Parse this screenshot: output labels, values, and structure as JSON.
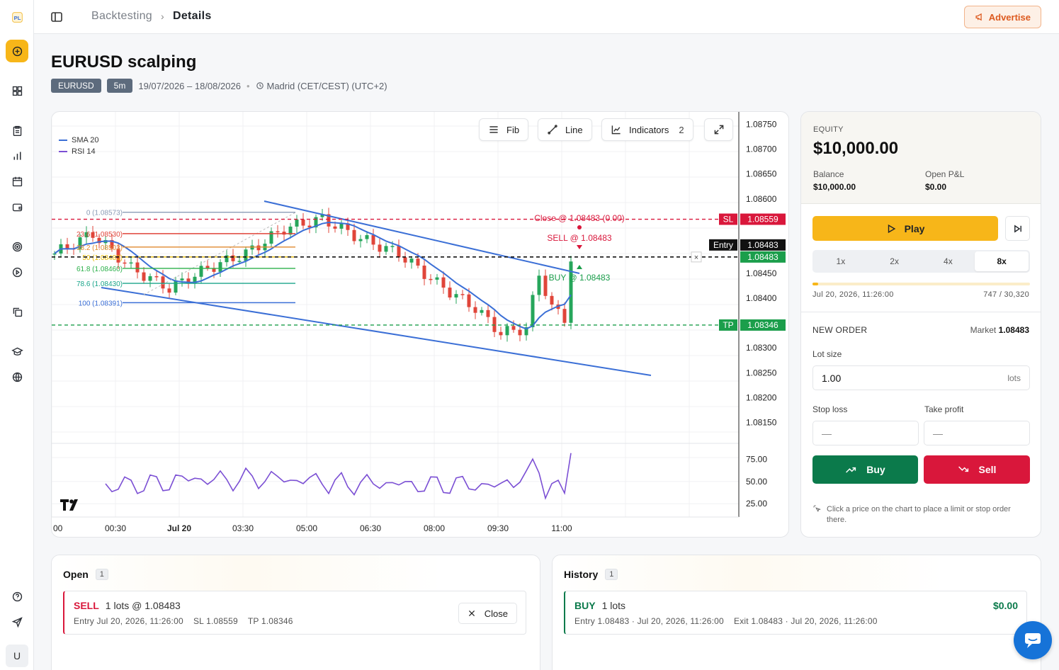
{
  "breadcrumb": {
    "parent": "Backtesting",
    "current": "Details"
  },
  "advertise_label": "Advertise",
  "sidebar": {
    "user_initial": "U"
  },
  "session": {
    "title": "EURUSD scalping",
    "symbol": "EURUSD",
    "timeframe": "5m",
    "date_range": "19/07/2026 – 18/08/2026",
    "timezone": "Madrid (CET/CEST) (UTC+2)"
  },
  "toolbar": {
    "fib_label": "Fib",
    "line_label": "Line",
    "indicators_label": "Indicators",
    "indicators_count": "2"
  },
  "legend": [
    {
      "name": "SMA 20",
      "color": "#3b6fd6"
    },
    {
      "name": "RSI 14",
      "color": "#7b4fd4"
    }
  ],
  "chart_data": {
    "type": "candlestick",
    "price_axis": [
      "1.08750",
      "1.08700",
      "1.08650",
      "1.08600",
      "1.08450",
      "1.08400",
      "1.08300",
      "1.08250",
      "1.08200",
      "1.08150"
    ],
    "price_range": [
      1.08115,
      1.08775
    ],
    "time_axis": [
      "00",
      "00:30",
      "Jul 20",
      "03:30",
      "05:00",
      "06:30",
      "08:00",
      "09:30",
      "11:00"
    ],
    "rsi_axis": [
      "75.00",
      "50.00",
      "25.00"
    ],
    "rsi_range": [
      10,
      85
    ],
    "levels": {
      "sl": {
        "label": "SL",
        "price": "1.08559",
        "value": 1.08559
      },
      "entry": {
        "label": "Entry",
        "price": "1.08483",
        "value": 1.08483
      },
      "current": {
        "price": "1.08483"
      },
      "tp": {
        "label": "TP",
        "price": "1.08346",
        "value": 1.08346
      }
    },
    "fib_levels": [
      {
        "label": "0 (1.08573)",
        "value": 1.08573,
        "color": "#8b9cb6"
      },
      {
        "label": "23.6 (1.08530)",
        "value": 1.0853,
        "color": "#e0453a"
      },
      {
        "label": "38.2 (1.08503)",
        "value": 1.08503,
        "color": "#e08a2e"
      },
      {
        "label": "50 (1.08483)",
        "value": 1.08483,
        "color": "#e6b800"
      },
      {
        "label": "61.8 (1.08460)",
        "value": 1.0846,
        "color": "#2bb04a"
      },
      {
        "label": "78.6 (1.08430)",
        "value": 1.0843,
        "color": "#1aa58a"
      },
      {
        "label": "100 (1.08391)",
        "value": 1.08391,
        "color": "#3b6fd6"
      }
    ],
    "annotations": {
      "close": "Close @ 1.08483 (0.00)",
      "sell": "SELL @ 1.08483",
      "buy": "BUY @ 1.08483"
    }
  },
  "equity": {
    "label": "EQUITY",
    "value": "$10,000.00",
    "balance_label": "Balance",
    "balance": "$10,000.00",
    "pnl_label": "Open P&L",
    "pnl": "$0.00"
  },
  "playback": {
    "play_label": "Play",
    "speeds": [
      "1x",
      "2x",
      "4x",
      "8x"
    ],
    "active_speed": "8x",
    "progress": 0.025,
    "current_time": "Jul 20, 2026, 11:26:00",
    "bar_count": "747 / 30,320"
  },
  "order": {
    "title": "NEW ORDER",
    "market_label": "Market",
    "market_price": "1.08483",
    "lot_label": "Lot size",
    "lot_value": "1.00",
    "lot_unit": "lots",
    "sl_label": "Stop loss",
    "sl_placeholder": "—",
    "tp_label": "Take profit",
    "tp_placeholder": "—",
    "buy_label": "Buy",
    "sell_label": "Sell",
    "hint": "Click a price on the chart to place a limit or stop order there."
  },
  "open_positions": {
    "title": "Open",
    "count": "1",
    "items": [
      {
        "side": "SELL",
        "size": "1 lots @ 1.08483",
        "entry": "Entry Jul 20, 2026, 11:26:00",
        "sl": "SL 1.08559",
        "tp": "TP 1.08346",
        "close_label": "Close"
      }
    ]
  },
  "history": {
    "title": "History",
    "count": "1",
    "items": [
      {
        "side": "BUY",
        "size": "1 lots",
        "entry": "Entry 1.08483 · Jul 20, 2026, 11:26:00",
        "exit": "Exit 1.08483 · Jul 20, 2026, 11:26:00",
        "pnl": "$0.00"
      }
    ]
  }
}
